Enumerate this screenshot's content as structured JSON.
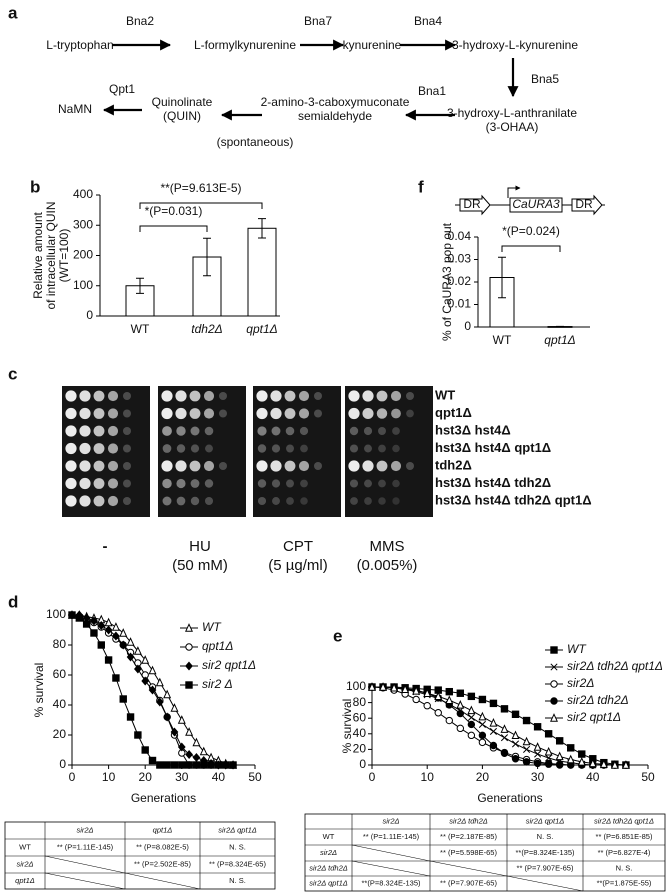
{
  "pathway": {
    "label": "a",
    "nodes": [
      {
        "lines": [
          "L-tryptophan"
        ]
      },
      {
        "lines": [
          "L-formylkynurenine"
        ]
      },
      {
        "lines": [
          "kynurenine"
        ]
      },
      {
        "lines": [
          "3-hydroxy-L-kynurenine"
        ]
      },
      {
        "lines": [
          "3-hydroxy-L-anthranilate",
          "(3-OHAA)"
        ]
      },
      {
        "lines": [
          "2-amino-3-caboxymuconate",
          "semialdehyde"
        ]
      },
      {
        "lines": [
          "Quinolinate",
          "(QUIN)"
        ]
      },
      {
        "lines": [
          "NaMN"
        ]
      }
    ],
    "enzymes": [
      "Bna2",
      "Bna7",
      "Bna4",
      "Bna5",
      "Bna1",
      "Qpt1"
    ],
    "note": "(spontaneous)"
  },
  "chart_data": [
    {
      "panel": "b",
      "type": "bar",
      "ylabel": [
        "Relative amount",
        "of intracellular QUIN",
        "(WT=100)"
      ],
      "categories": [
        "WT",
        "tdh2Δ",
        "qpt1Δ"
      ],
      "values": [
        100,
        195,
        290
      ],
      "errors": [
        25,
        62,
        32
      ],
      "color": "#ffffff",
      "ylim": [
        0,
        400
      ],
      "yticks": [
        0,
        100,
        200,
        300,
        400
      ],
      "annotations": [
        "*(P=0.031)",
        "**(P=9.613E-5)"
      ]
    },
    {
      "panel": "f",
      "type": "bar",
      "construct": [
        "DR",
        "CaURA3",
        "DR"
      ],
      "ylabel": [
        "% of CaURA3 pop out"
      ],
      "categories": [
        "WT",
        "qpt1Δ"
      ],
      "values": [
        0.022,
        0.0002
      ],
      "errors": [
        0.009,
        0.0001
      ],
      "color": "#ffffff",
      "ylim": [
        0,
        0.04
      ],
      "yticks": [
        0,
        0.01,
        0.02,
        0.03,
        0.04
      ],
      "annotations": [
        "*(P=0.024)"
      ]
    },
    {
      "panel": "d",
      "type": "line",
      "xlabel": "Generations",
      "ylabel": [
        "% survival"
      ],
      "x": [
        0,
        2,
        4,
        6,
        8,
        10,
        12,
        14,
        16,
        18,
        20,
        22,
        24,
        26,
        28,
        30,
        32,
        34,
        36,
        38,
        40,
        42,
        44
      ],
      "xlim": [
        0,
        50
      ],
      "xticks": [
        0,
        10,
        20,
        30,
        40,
        50
      ],
      "ylim": [
        0,
        100
      ],
      "yticks": [
        0,
        20,
        40,
        60,
        80,
        100
      ],
      "series": [
        {
          "name": "WT",
          "color": "#000000",
          "marker": "triangle-open",
          "values": [
            100,
            100,
            99,
            98,
            97,
            95,
            92,
            88,
            82,
            76,
            70,
            63,
            55,
            47,
            38,
            30,
            22,
            15,
            9,
            5,
            3,
            1,
            0
          ]
        },
        {
          "name": "qpt1Δ",
          "color": "#000000",
          "marker": "circle-open",
          "values": [
            100,
            99,
            97,
            95,
            92,
            88,
            84,
            80,
            75,
            68,
            60,
            52,
            43,
            32,
            20,
            8,
            0,
            0,
            0,
            0,
            0,
            0,
            0
          ]
        },
        {
          "name": "sir2 qpt1Δ",
          "color": "#000000",
          "marker": "diamond-filled",
          "values": [
            100,
            100,
            98,
            96,
            93,
            90,
            86,
            80,
            72,
            64,
            56,
            50,
            42,
            32,
            22,
            12,
            7,
            5,
            3,
            1,
            0,
            0,
            0
          ]
        },
        {
          "name": "sir2 Δ",
          "color": "#000000",
          "marker": "square-filled",
          "values": [
            100,
            98,
            94,
            88,
            80,
            70,
            58,
            44,
            32,
            20,
            10,
            3,
            0,
            0,
            0,
            0,
            0,
            0,
            0,
            0,
            0,
            0,
            0
          ]
        }
      ]
    },
    {
      "panel": "e",
      "type": "line",
      "xlabel": "Generations",
      "ylabel": [
        "% survival"
      ],
      "x": [
        0,
        2,
        4,
        6,
        8,
        10,
        12,
        14,
        16,
        18,
        20,
        22,
        24,
        26,
        28,
        30,
        32,
        34,
        36,
        38,
        40,
        42,
        44,
        46
      ],
      "xlim": [
        0,
        50
      ],
      "xticks": [
        0,
        10,
        20,
        30,
        40,
        50
      ],
      "ylim": [
        0,
        100
      ],
      "yticks": [
        0,
        20,
        40,
        60,
        80,
        100
      ],
      "series": [
        {
          "name": "WT",
          "color": "#000000",
          "marker": "square-filled",
          "values": [
            100,
            100,
            100,
            99,
            98,
            97,
            96,
            94,
            92,
            88,
            84,
            79,
            72,
            65,
            57,
            49,
            40,
            31,
            22,
            14,
            8,
            3,
            1,
            0
          ]
        },
        {
          "name": "sir2Δ tdh2Δ qpt1Δ",
          "color": "#000000",
          "marker": "x",
          "values": [
            100,
            100,
            99,
            97,
            94,
            90,
            85,
            78,
            70,
            61,
            52,
            43,
            35,
            27,
            20,
            14,
            9,
            5,
            3,
            1,
            0,
            0,
            0,
            0
          ]
        },
        {
          "name": "sir2Δ",
          "color": "#000000",
          "marker": "circle-open",
          "values": [
            100,
            99,
            96,
            91,
            84,
            76,
            67,
            57,
            47,
            38,
            29,
            22,
            16,
            11,
            7,
            4,
            2,
            1,
            0,
            0,
            0,
            0,
            0,
            0
          ]
        },
        {
          "name": "sir2Δ tdh2Δ",
          "color": "#000000",
          "marker": "circle-filled",
          "values": [
            100,
            100,
            99,
            98,
            96,
            92,
            86,
            77,
            66,
            52,
            38,
            25,
            15,
            8,
            4,
            2,
            1,
            0,
            0,
            0,
            0,
            0,
            0,
            0
          ]
        },
        {
          "name": "sir2 qpt1Δ",
          "color": "#000000",
          "marker": "triangle-open",
          "values": [
            100,
            100,
            99,
            97,
            95,
            92,
            88,
            83,
            77,
            70,
            62,
            54,
            46,
            38,
            30,
            23,
            17,
            11,
            7,
            4,
            2,
            1,
            0,
            0
          ]
        }
      ]
    }
  ],
  "spot_assay": {
    "label": "c",
    "strains": [
      "WT",
      "qpt1Δ",
      "hst3Δ hst4Δ",
      "hst3Δ hst4Δ qpt1Δ",
      "tdh2Δ",
      "hst3Δ hst4Δ tdh2Δ",
      "hst3Δ hst4Δ tdh2Δ qpt1Δ"
    ],
    "conditions": [
      [
        "-"
      ],
      [
        "HU",
        "(50 mM)"
      ],
      [
        "CPT",
        "(5 µg/ml)"
      ],
      [
        "MMS",
        "(0.005%)"
      ]
    ]
  },
  "tables": [
    {
      "header": [
        null,
        "sir2Δ",
        "qpt1Δ",
        "sir2Δ qpt1Δ"
      ],
      "rows": [
        [
          "WT",
          "** (P=1.11E-145)",
          "** (P=8.082E-5)",
          "N. S."
        ],
        [
          "sir2Δ",
          null,
          "** (P=2.502E-85)",
          "** (P=8.324E-65)"
        ],
        [
          "qpt1Δ",
          null,
          null,
          "N. S."
        ]
      ]
    },
    {
      "header": [
        null,
        "sir2Δ",
        "sir2Δ tdh2Δ",
        "sir2Δ qpt1Δ",
        "sir2Δ tdh2Δ qpt1Δ"
      ],
      "rows": [
        [
          "WT",
          "** (P=1.11E-145)",
          "** (P=2.187E-85)",
          "N. S.",
          "** (P=6.851E-85)"
        ],
        [
          "sir2Δ",
          null,
          "** (P=5.598E-65)",
          "**(P=8.324E-135)",
          "** (P=6.827E-4)"
        ],
        [
          "sir2Δ tdh2Δ",
          null,
          null,
          "** (P=7.907E-65)",
          "N. S."
        ],
        [
          "sir2Δ qpt1Δ",
          "**(P=8.324E-135)",
          "** (P=7.907E-65)",
          null,
          "**(P=1.875E-55)"
        ]
      ]
    }
  ]
}
